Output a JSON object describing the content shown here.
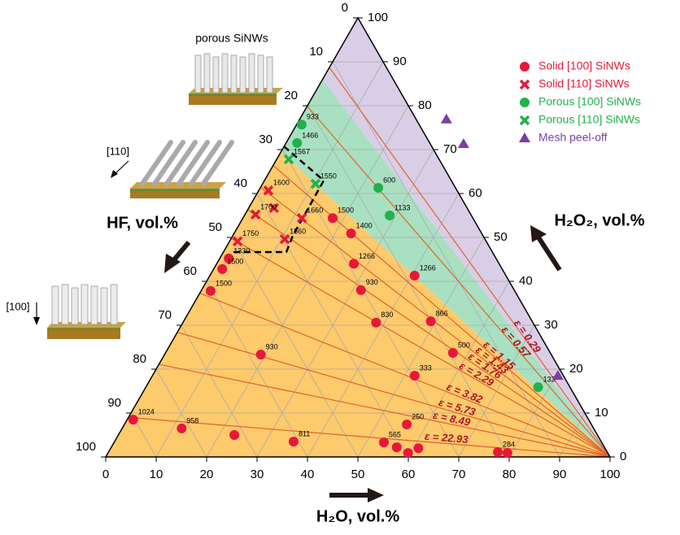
{
  "chart_data": {
    "type": "ternary",
    "h2o_label": "H₂O, vol.%",
    "hf_label": "HF, vol.%",
    "h2o2_label": "H₂O₂, vol.%",
    "h2o_ticks": [
      0,
      10,
      20,
      30,
      40,
      50,
      60,
      70,
      80,
      90,
      100
    ],
    "hf_ticks": [
      0,
      10,
      20,
      30,
      40,
      50,
      60,
      70,
      80,
      90,
      100
    ],
    "h2o2_ticks": [
      0,
      10,
      20,
      30,
      40,
      50,
      60,
      70,
      80,
      90,
      100
    ],
    "grid": true,
    "regions": [
      {
        "color": "#fdca6c",
        "from": 0,
        "to": 69.5
      },
      {
        "color": "#a9e0c2",
        "from": 69.5,
        "to": 86
      },
      {
        "color": "#d9cee6",
        "from": 86,
        "to": 100
      }
    ],
    "epsilon_lines": {
      "color": "#e0632a",
      "h2o2_at_hf_edge": [
        88.7,
        79.9,
        66.4,
        61.4,
        56.3,
        49.8,
        37.3,
        28.4,
        21.1,
        9
      ],
      "labels": [
        "ε = 0.29",
        "ε = 0.57",
        "ε = 1.15",
        "ε = 1.43",
        "ε = 1.76",
        "ε = 2.29",
        "ε = 3.82",
        "ε = 5.73",
        "ε = 8.49",
        "ε = 22.93"
      ]
    },
    "series": [
      {
        "name": "Solid [100] SiNWs",
        "color": "#e8173a",
        "marker": "circle",
        "h2o": [
          1.2,
          11.8,
          23,
          35.5,
          53.5,
          56.6,
          59.5,
          61,
          56,
          77.2,
          79.2,
          19.1,
          52,
          57,
          49,
          38.3,
          31.6,
          27.2,
          40.6,
          23.2,
          17.8,
          1.8,
          1.7,
          1.9
        ],
        "h2o2": [
          8.5,
          6.5,
          5,
          3.5,
          3.3,
          2.2,
          0.9,
          2,
          7.4,
          1.1,
          0.9,
          23.3,
          18.5,
          23.7,
          30.9,
          30.6,
          38,
          44,
          41.3,
          50.9,
          54.4,
          45.2,
          42.8,
          37.8
        ],
        "annotations": [
          "1024",
          "958",
          null,
          "811",
          "565",
          null,
          null,
          null,
          "250",
          "284",
          null,
          "930",
          "333",
          "500",
          "866",
          "830",
          "930",
          "1266",
          "1266",
          "1400",
          "1500",
          "1330",
          "1500",
          "1500"
        ]
      },
      {
        "name": "Solid [110] SiNWs",
        "color": "#e8173a",
        "marker": "cross",
        "h2o": [
          1.9,
          5,
          2.1,
          11.7,
          10.7,
          1.6
        ],
        "h2o2": [
          60.7,
          56.7,
          55.2,
          54.4,
          49.6,
          49.1
        ],
        "annotations": [
          "1600",
          null,
          "1700",
          "1660",
          "1560",
          "1750"
        ]
      },
      {
        "name": "Porous [100] SiNWs",
        "color": "#22b14c",
        "marker": "circle",
        "h2o": [
          1,
          2.2,
          23.4,
          28.8,
          77.8
        ],
        "h2o2": [
          75.7,
          71.5,
          61.3,
          55,
          15.9
        ],
        "annotations": [
          "933",
          "1466",
          "600",
          "1133",
          "133"
        ]
      },
      {
        "name": "Porous [110] SiNWs",
        "color": "#22b14c",
        "marker": "cross",
        "h2o": [
          2.4,
          10.5
        ],
        "h2o2": [
          67.8,
          62.2
        ],
        "annotations": [
          "1567",
          "1550"
        ]
      },
      {
        "name": "Mesh peel-off",
        "color": "#7b3fa0",
        "marker": "triangle",
        "h2o": [
          29.1,
          35.3,
          80.4
        ],
        "h2o2": [
          76.9,
          71.3,
          18.5
        ]
      }
    ],
    "illustrations": {
      "porous": "porous SiNWs",
      "dir110": "[110]",
      "dir100": "[100]"
    }
  }
}
